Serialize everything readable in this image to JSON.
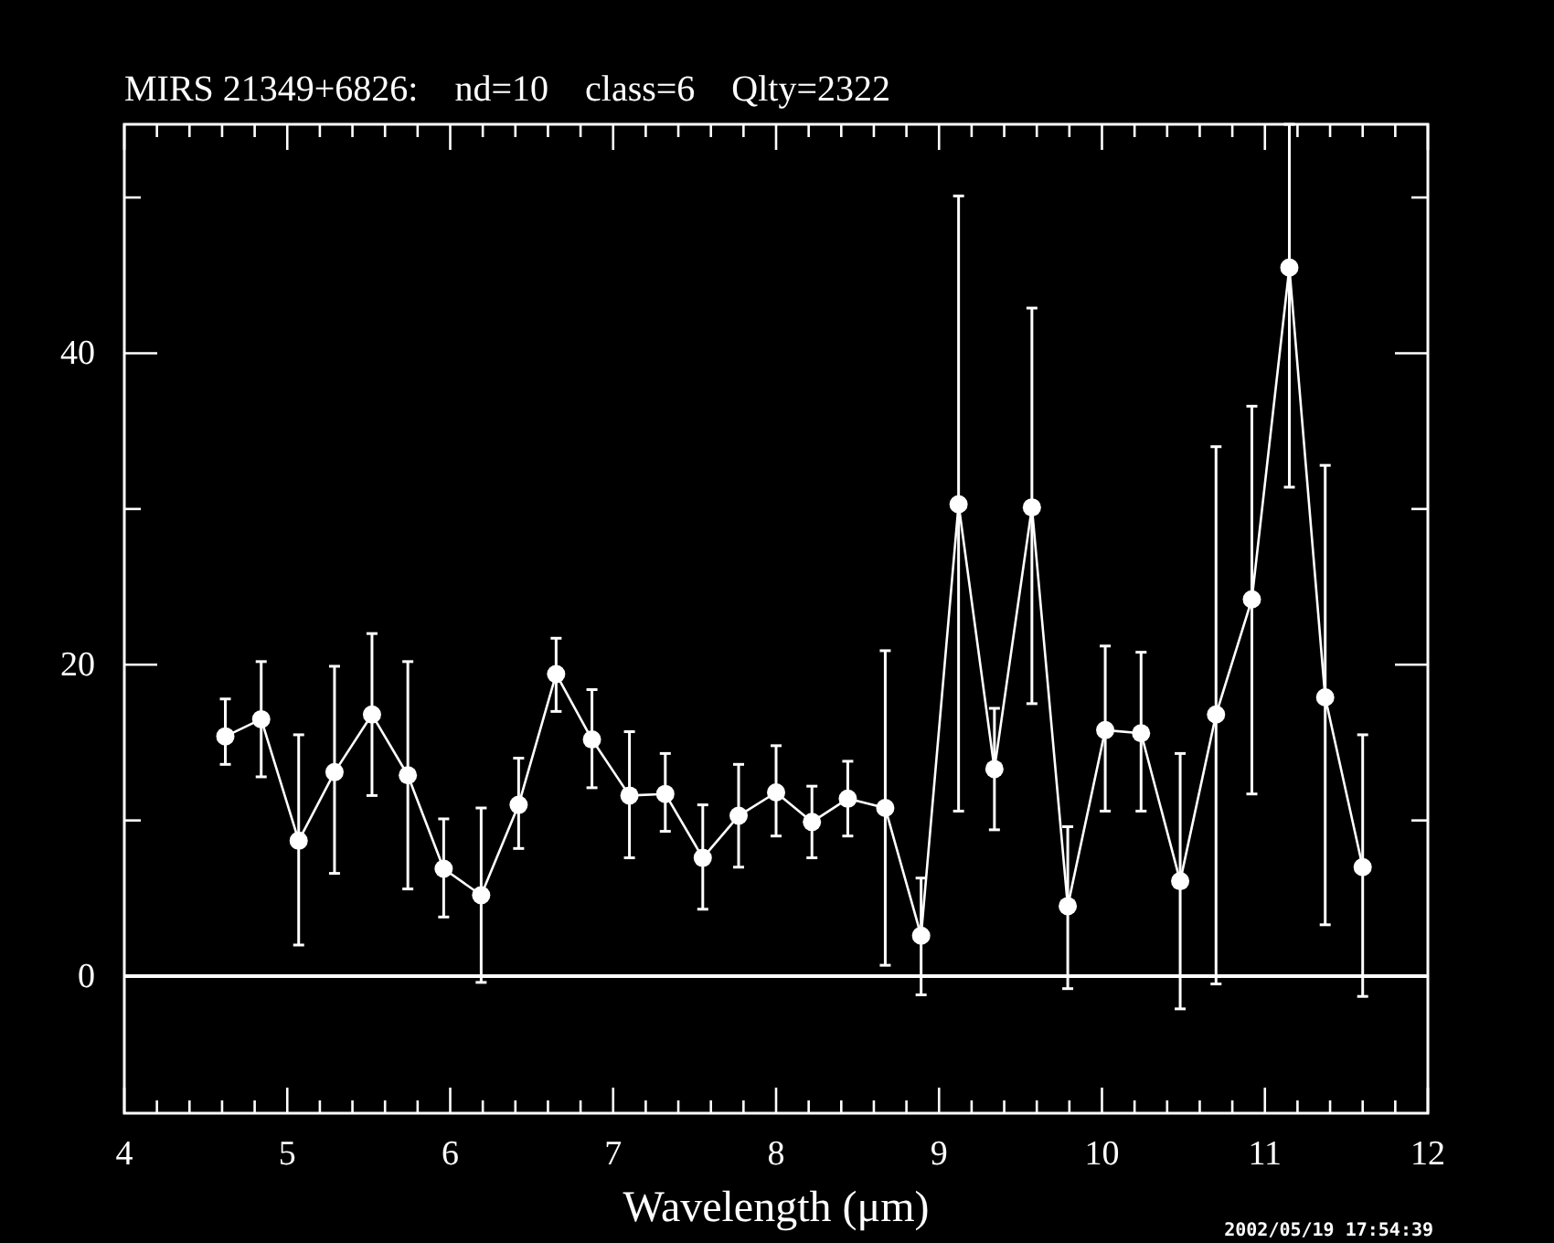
{
  "chart_data": {
    "type": "line",
    "title": "MIRS 21349+6826:    nd=10    class=6    Qlty=2322",
    "xlabel": "Wavelength (μm)",
    "x": [
      4.62,
      4.84,
      5.07,
      5.29,
      5.52,
      5.74,
      5.96,
      6.19,
      6.42,
      6.65,
      6.87,
      7.1,
      7.32,
      7.55,
      7.77,
      8.0,
      8.22,
      8.44,
      8.67,
      8.89,
      9.12,
      9.34,
      9.57,
      9.79,
      10.02,
      10.24,
      10.48,
      10.7,
      10.92,
      11.15,
      11.37,
      11.6
    ],
    "series": [
      {
        "color": "#ffffff",
        "values": [
          15.4,
          16.5,
          8.7,
          13.1,
          16.8,
          12.9,
          6.9,
          5.2,
          11.0,
          19.4,
          15.2,
          11.6,
          11.7,
          7.6,
          10.3,
          11.8,
          9.9,
          11.4,
          10.8,
          2.6,
          30.3,
          13.3,
          30.1,
          4.5,
          15.8,
          15.6,
          6.1,
          16.8,
          24.2,
          45.5,
          17.9,
          7.0
        ],
        "errors": [
          [
            13.6,
            17.8
          ],
          [
            12.8,
            20.2
          ],
          [
            2.0,
            15.5
          ],
          [
            6.6,
            19.9
          ],
          [
            11.6,
            22.0
          ],
          [
            5.6,
            20.2
          ],
          [
            3.8,
            10.1
          ],
          [
            -0.4,
            10.8
          ],
          [
            8.2,
            14.0
          ],
          [
            17.0,
            21.7
          ],
          [
            12.1,
            18.4
          ],
          [
            7.6,
            15.7
          ],
          [
            9.3,
            14.3
          ],
          [
            4.3,
            11.0
          ],
          [
            7.0,
            13.6
          ],
          [
            9.0,
            14.8
          ],
          [
            7.6,
            12.2
          ],
          [
            9.0,
            13.8
          ],
          [
            0.7,
            20.9
          ],
          [
            -1.2,
            6.3
          ],
          [
            10.6,
            50.1
          ],
          [
            9.4,
            17.2
          ],
          [
            17.5,
            42.9
          ],
          [
            -0.8,
            9.6
          ],
          [
            10.6,
            21.2
          ],
          [
            10.6,
            20.8
          ],
          [
            -2.1,
            14.3
          ],
          [
            -0.5,
            34.0
          ],
          [
            11.7,
            36.6
          ],
          [
            31.4,
            54.7
          ],
          [
            3.3,
            32.8
          ],
          [
            -1.3,
            15.5
          ]
        ]
      }
    ],
    "marker": "circle",
    "line_style": "solid",
    "xlim": [
      4,
      12
    ],
    "ylim": [
      -8.8,
      54.7
    ],
    "xticks": [
      4,
      {
        "value": 4.2,
        "label": null
      },
      {
        "value": 4.4,
        "label": null
      },
      {
        "value": 4.6,
        "label": null
      },
      {
        "value": 4.8,
        "label": null
      },
      5,
      {
        "value": 5.2,
        "label": null
      },
      {
        "value": 5.4,
        "label": null
      },
      {
        "value": 5.6,
        "label": null
      },
      {
        "value": 5.8,
        "label": null
      },
      6,
      {
        "value": 6.2,
        "label": null
      },
      {
        "value": 6.4,
        "label": null
      },
      {
        "value": 6.6,
        "label": null
      },
      {
        "value": 6.8,
        "label": null
      },
      7,
      {
        "value": 7.2,
        "label": null
      },
      {
        "value": 7.4,
        "label": null
      },
      {
        "value": 7.6,
        "label": null
      },
      {
        "value": 7.8,
        "label": null
      },
      8,
      {
        "value": 8.2,
        "label": null
      },
      {
        "value": 8.4,
        "label": null
      },
      {
        "value": 8.6,
        "label": null
      },
      {
        "value": 8.8,
        "label": null
      },
      9,
      {
        "value": 9.2,
        "label": null
      },
      {
        "value": 9.4,
        "label": null
      },
      {
        "value": 9.6,
        "label": null
      },
      {
        "value": 9.8,
        "label": null
      },
      10,
      {
        "value": 10.2,
        "label": null
      },
      {
        "value": 10.4,
        "label": null
      },
      {
        "value": 10.6,
        "label": null
      },
      {
        "value": 10.8,
        "label": null
      },
      11,
      {
        "value": 11.2,
        "label": null
      },
      {
        "value": 11.4,
        "label": null
      },
      {
        "value": 11.6,
        "label": null
      },
      {
        "value": 11.8,
        "label": null
      },
      12
    ],
    "yticks": [
      0,
      {
        "value": 10,
        "label": null
      },
      20,
      {
        "value": 30,
        "label": null
      },
      40,
      {
        "value": 50,
        "label": null
      }
    ],
    "ref_lines": [
      {
        "axis": "y",
        "value": 0,
        "color": "#ffffff"
      }
    ],
    "annotations": [
      "2002/05/19 17:54:39"
    ],
    "grid": false
  }
}
